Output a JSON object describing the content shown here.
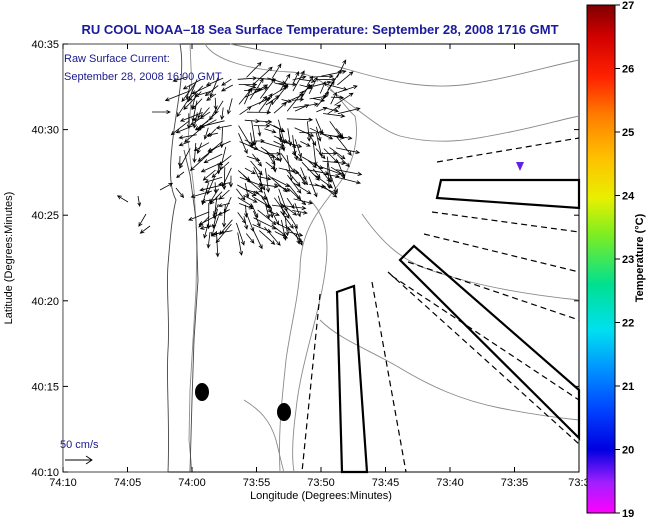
{
  "chart_data": {
    "type": "scatter",
    "subtype": "oceanographic vector map",
    "title": "RU COOL  NOAA–18  Sea Surface Temperature:  September 28, 2008 1716 GMT",
    "xlabel": "Longitude (Degrees:Minutes)",
    "ylabel": "Latitude (Degrees:Minutes)",
    "x_ticks": [
      "74:10",
      "74:05",
      "74:00",
      "73:55",
      "73:50",
      "73:45",
      "73:40",
      "73:35",
      "73:3"
    ],
    "y_ticks": [
      "40:35",
      "40:30",
      "40:25",
      "40:20",
      "40:15",
      "40:10"
    ],
    "xlim_min": [
      -74.1667,
      -73.5
    ],
    "ylim_min": [
      40.1667,
      40.5833
    ],
    "legend": {
      "line1": "Raw Surface Current:",
      "line2": "September 28, 2008 16:00 GMT"
    },
    "scale_label": "50 cm/s",
    "colorbar": {
      "label": "Temperature (°C)",
      "ticks": [
        "27",
        "26",
        "25",
        "24",
        "23",
        "22",
        "21",
        "20",
        "19"
      ],
      "range": [
        19,
        27
      ]
    },
    "features": {
      "buoys": [
        {
          "lon": -73.9833,
          "lat": 40.2417
        },
        {
          "lon": -73.8833,
          "lat": 40.225
        }
      ],
      "sst_marker": {
        "lon": -73.575,
        "lat": 40.4583,
        "temperature": 20.0
      }
    }
  }
}
